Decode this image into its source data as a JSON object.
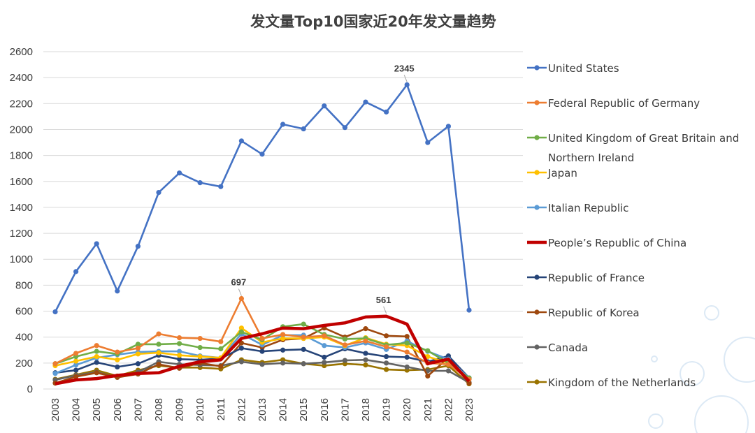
{
  "chart_data": {
    "type": "line",
    "title": "发文量Top10国家近20年发文量趋势",
    "xlabel": "",
    "ylabel": "",
    "ylim": [
      0,
      2600
    ],
    "yticks": [
      0,
      200,
      400,
      600,
      800,
      1000,
      1200,
      1400,
      1600,
      1800,
      2000,
      2200,
      2400,
      2600
    ],
    "grid": true,
    "legend_position": "right",
    "x": [
      "2003",
      "2004",
      "2005",
      "2006",
      "2007",
      "2008",
      "2009",
      "2010",
      "2011",
      "2012",
      "2013",
      "2014",
      "2015",
      "2016",
      "2017",
      "2018",
      "2019",
      "2020",
      "2021",
      "2022",
      "2023"
    ],
    "series": [
      {
        "name": "United States",
        "color": "#4472c4",
        "values": [
          595,
          905,
          1120,
          755,
          1100,
          1515,
          1665,
          1590,
          1560,
          1912,
          1810,
          2040,
          2005,
          2182,
          2015,
          2212,
          2135,
          2345,
          1900,
          2025,
          608
        ]
      },
      {
        "name": "Federal Republic of Germany",
        "color": "#ed7d31",
        "values": [
          195,
          275,
          335,
          285,
          315,
          425,
          395,
          390,
          365,
          697,
          390,
          420,
          400,
          410,
          340,
          370,
          325,
          285,
          200,
          190,
          75
        ]
      },
      {
        "name": "United Kingdom of Great Britain and Northern Ireland",
        "color": "#70ad47",
        "values": [
          195,
          250,
          290,
          270,
          345,
          345,
          350,
          320,
          310,
          440,
          380,
          480,
          500,
          420,
          385,
          390,
          340,
          355,
          295,
          200,
          85
        ]
      },
      {
        "name": "Japan",
        "color": "#ffc000",
        "values": [
          180,
          215,
          250,
          225,
          270,
          280,
          260,
          250,
          240,
          470,
          360,
          390,
          390,
          400,
          335,
          395,
          345,
          335,
          250,
          200,
          80
        ]
      },
      {
        "name": "Italian Republic",
        "color": "#5b9bd5",
        "values": [
          120,
          185,
          240,
          265,
          285,
          290,
          290,
          255,
          240,
          425,
          340,
          415,
          415,
          335,
          320,
          355,
          305,
          370,
          290,
          230,
          85
        ]
      },
      {
        "name": "People’s Republic of China",
        "color": "#c00000",
        "values": [
          40,
          70,
          80,
          105,
          120,
          125,
          175,
          210,
          225,
          390,
          425,
          470,
          465,
          490,
          510,
          555,
          561,
          500,
          195,
          230,
          60
        ]
      },
      {
        "name": "Republic of France",
        "color": "#264478",
        "values": [
          125,
          145,
          205,
          170,
          195,
          260,
          230,
          225,
          235,
          315,
          290,
          300,
          305,
          245,
          310,
          275,
          250,
          245,
          210,
          255,
          85
        ]
      },
      {
        "name": "Republic of Korea",
        "color": "#9e480e",
        "values": [
          45,
          95,
          125,
          90,
          115,
          190,
          160,
          200,
          175,
          355,
          320,
          380,
          390,
          470,
          400,
          465,
          410,
          405,
          100,
          240,
          45
        ]
      },
      {
        "name": "Canada",
        "color": "#636363",
        "values": [
          70,
          105,
          130,
          90,
          130,
          210,
          190,
          185,
          180,
          210,
          190,
          200,
          195,
          205,
          220,
          225,
          200,
          170,
          140,
          140,
          50
        ]
      },
      {
        "name": "Kingdom of the Netherlands",
        "color": "#997300",
        "values": [
          75,
          110,
          145,
          100,
          145,
          180,
          165,
          165,
          155,
          225,
          205,
          225,
          195,
          180,
          195,
          185,
          150,
          145,
          150,
          180,
          40
        ]
      }
    ],
    "legend_labels": [
      {
        "lines": [
          "United States"
        ]
      },
      {
        "lines": [
          "Federal Republic of Germany"
        ]
      },
      {
        "lines": [
          "United Kingdom of Great Britain and",
          "Northern Ireland"
        ]
      },
      {
        "lines": [
          "Japan"
        ]
      },
      {
        "lines": [
          "Italian Republic"
        ]
      },
      {
        "lines": [
          "People’s Republic of China"
        ]
      },
      {
        "lines": [
          "Republic of France"
        ]
      },
      {
        "lines": [
          "Republic of Korea"
        ]
      },
      {
        "lines": [
          "Canada"
        ]
      },
      {
        "lines": [
          "Kingdom of the Netherlands"
        ]
      }
    ],
    "annotations": [
      {
        "series": 0,
        "x_index": 17,
        "text": "2345"
      },
      {
        "series": 1,
        "x_index": 9,
        "text": "697"
      },
      {
        "series": 5,
        "x_index": 16,
        "text": "561"
      }
    ]
  }
}
